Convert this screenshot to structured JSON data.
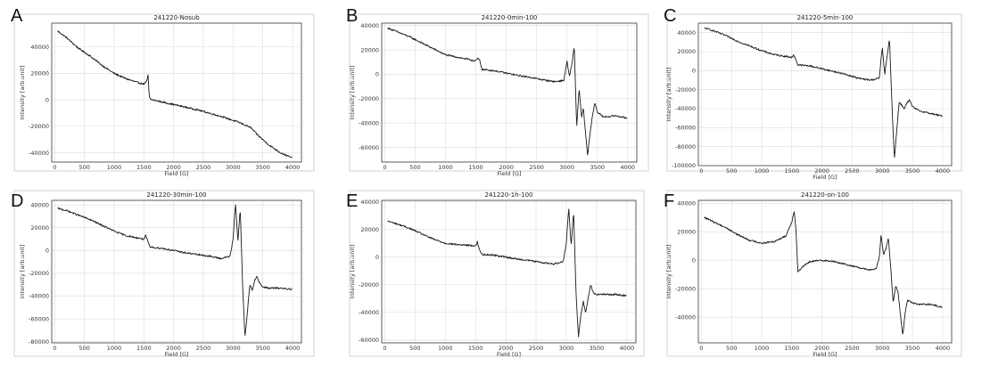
{
  "chart_data": [
    {
      "letter": "A",
      "type": "line",
      "title": "241220-Nosub",
      "xlabel": "Field [G]",
      "ylabel": "Intensity [arb.unit]",
      "xlim": [
        -50,
        4150
      ],
      "ylim": [
        -47000,
        58000
      ],
      "xticks": [
        0,
        500,
        1000,
        1500,
        2000,
        2500,
        3000,
        3500,
        4000
      ],
      "yticks": [
        -40000,
        -20000,
        0,
        20000,
        40000
      ],
      "grid": true,
      "series": [
        {
          "x": [
            50,
            200,
            400,
            600,
            800,
            1000,
            1200,
            1400,
            1500,
            1550,
            1570,
            1590,
            1620,
            1800,
            2000,
            2200,
            2400,
            2600,
            2800,
            3000,
            3100,
            3200,
            3300,
            3400,
            3600,
            3800,
            4000
          ],
          "y": [
            52000,
            47000,
            39000,
            33000,
            26000,
            20000,
            16000,
            13000,
            12000,
            14000,
            19000,
            2000,
            300,
            -1500,
            -3500,
            -5500,
            -7500,
            -10000,
            -12500,
            -15500,
            -17000,
            -19000,
            -21000,
            -26000,
            -34000,
            -40000,
            -44000
          ]
        }
      ]
    },
    {
      "letter": "B",
      "type": "line",
      "title": "241220-0min-100",
      "xlabel": "Field [G]",
      "ylabel": "Intensity [arb.unit]",
      "xlim": [
        -50,
        4150
      ],
      "ylim": [
        -72000,
        42000
      ],
      "xticks": [
        0,
        500,
        1000,
        1500,
        2000,
        2500,
        3000,
        3500,
        4000
      ],
      "yticks": [
        -60000,
        -40000,
        -20000,
        0,
        20000,
        40000
      ],
      "grid": true,
      "series": [
        {
          "x": [
            50,
            200,
            400,
            600,
            800,
            1000,
            1200,
            1400,
            1500,
            1530,
            1560,
            1600,
            1800,
            2000,
            2200,
            2400,
            2600,
            2800,
            2950,
            3000,
            3040,
            3080,
            3120,
            3160,
            3200,
            3240,
            3270,
            3300,
            3340,
            3380,
            3420,
            3460,
            3500,
            3600,
            3800,
            4000
          ],
          "y": [
            38000,
            35000,
            31000,
            26000,
            21000,
            16000,
            14000,
            12000,
            11000,
            13000,
            12000,
            4000,
            3000,
            1000,
            -1000,
            -2500,
            -4500,
            -6000,
            -5000,
            11000,
            -2000,
            8000,
            23000,
            -43000,
            -12000,
            -35000,
            -28000,
            -45000,
            -67000,
            -48000,
            -34000,
            -23000,
            -31000,
            -35000,
            -34000,
            -36000
          ]
        }
      ]
    },
    {
      "letter": "C",
      "type": "line",
      "title": "241220-5min-100",
      "xlabel": "Field [G]",
      "ylabel": "Intensity [arb.unit]",
      "xlim": [
        -50,
        4150
      ],
      "ylim": [
        -100000,
        50000
      ],
      "xticks": [
        0,
        500,
        1000,
        1500,
        2000,
        2500,
        3000,
        3500,
        4000
      ],
      "yticks": [
        -100000,
        -80000,
        -60000,
        -40000,
        -20000,
        0,
        20000,
        40000
      ],
      "grid": true,
      "series": [
        {
          "x": [
            50,
            200,
            400,
            600,
            800,
            1000,
            1200,
            1400,
            1500,
            1530,
            1560,
            1600,
            1800,
            2000,
            2200,
            2400,
            2600,
            2800,
            2950,
            3000,
            3040,
            3080,
            3120,
            3160,
            3200,
            3240,
            3280,
            3320,
            3360,
            3400,
            3450,
            3500,
            3600,
            3800,
            4000
          ],
          "y": [
            45000,
            42000,
            37000,
            31000,
            26000,
            21000,
            17000,
            15000,
            14000,
            16000,
            13000,
            6000,
            5000,
            2000,
            -1000,
            -4000,
            -8000,
            -10000,
            -8000,
            25000,
            -4000,
            15000,
            33000,
            -35000,
            -93000,
            -62000,
            -33000,
            -36000,
            -40000,
            -35000,
            -31000,
            -38000,
            -42000,
            -45000,
            -48000
          ]
        }
      ]
    },
    {
      "letter": "D",
      "type": "line",
      "title": "241220-30min-100",
      "xlabel": "Field [G]",
      "ylabel": "Intensity [arb.unit]",
      "xlim": [
        -50,
        4150
      ],
      "ylim": [
        -81000,
        44000
      ],
      "xticks": [
        0,
        500,
        1000,
        1500,
        2000,
        2500,
        3000,
        3500,
        4000
      ],
      "yticks": [
        -80000,
        -60000,
        -40000,
        -20000,
        0,
        20000,
        40000
      ],
      "grid": true,
      "series": [
        {
          "x": [
            50,
            200,
            400,
            600,
            800,
            1000,
            1200,
            1400,
            1500,
            1530,
            1560,
            1600,
            1800,
            2000,
            2200,
            2400,
            2600,
            2800,
            2950,
            3000,
            3040,
            3080,
            3120,
            3160,
            3200,
            3240,
            3280,
            3320,
            3360,
            3400,
            3450,
            3500,
            3600,
            3800,
            4000
          ],
          "y": [
            37000,
            35000,
            31000,
            27000,
            22000,
            17000,
            13000,
            11000,
            10000,
            13000,
            9000,
            3000,
            2000,
            0,
            -2000,
            -3500,
            -5000,
            -7000,
            -5000,
            10000,
            42000,
            8000,
            37000,
            -30000,
            -76000,
            -55000,
            -30000,
            -35000,
            -27000,
            -22000,
            -29000,
            -32000,
            -33000,
            -33000,
            -34000
          ]
        }
      ]
    },
    {
      "letter": "E",
      "type": "line",
      "title": "241220-1h-100",
      "xlabel": "Field [G]",
      "ylabel": "Intensity [arb.unit]",
      "xlim": [
        -50,
        4150
      ],
      "ylim": [
        -62000,
        41000
      ],
      "xticks": [
        0,
        500,
        1000,
        1500,
        2000,
        2500,
        3000,
        3500,
        4000
      ],
      "yticks": [
        -60000,
        -40000,
        -20000,
        0,
        20000,
        40000
      ],
      "grid": true,
      "series": [
        {
          "x": [
            50,
            200,
            400,
            600,
            800,
            1000,
            1200,
            1400,
            1500,
            1530,
            1560,
            1600,
            1800,
            2000,
            2200,
            2400,
            2600,
            2800,
            2950,
            3000,
            3040,
            3080,
            3120,
            3160,
            3200,
            3240,
            3280,
            3320,
            3360,
            3400,
            3450,
            3500,
            3600,
            3800,
            4000
          ],
          "y": [
            26000,
            24000,
            21000,
            17000,
            13000,
            10000,
            9000,
            8500,
            8000,
            11000,
            6000,
            2000,
            1500,
            0,
            -1500,
            -2500,
            -4000,
            -5000,
            -3000,
            10000,
            36000,
            8000,
            33000,
            -25000,
            -58000,
            -42000,
            -32000,
            -40000,
            -30000,
            -20000,
            -26000,
            -27000,
            -27000,
            -27000,
            -28000
          ]
        }
      ]
    },
    {
      "letter": "F",
      "type": "line",
      "title": "241220-on-100",
      "xlabel": "Field [G]",
      "ylabel": "Intensity [arb.unit]",
      "xlim": [
        -50,
        4150
      ],
      "ylim": [
        -58000,
        42000
      ],
      "xticks": [
        0,
        500,
        1000,
        1500,
        2000,
        2500,
        3000,
        3500,
        4000
      ],
      "yticks": [
        -40000,
        -20000,
        0,
        20000,
        40000
      ],
      "grid": true,
      "series": [
        {
          "x": [
            50,
            200,
            400,
            600,
            800,
            1000,
            1200,
            1400,
            1500,
            1540,
            1570,
            1600,
            1700,
            1800,
            2000,
            2200,
            2400,
            2600,
            2800,
            2900,
            2950,
            2980,
            3020,
            3060,
            3100,
            3140,
            3180,
            3220,
            3260,
            3300,
            3340,
            3380,
            3420,
            3500,
            3600,
            3800,
            4000
          ],
          "y": [
            30000,
            27000,
            23000,
            18000,
            14000,
            12000,
            13000,
            17000,
            27000,
            35000,
            20000,
            -8000,
            -4000,
            -1000,
            0,
            -1000,
            -3000,
            -5000,
            -7000,
            -6000,
            2000,
            18000,
            4000,
            8000,
            16000,
            -5000,
            -30000,
            -18000,
            -22000,
            -38000,
            -53000,
            -36000,
            -28000,
            -30000,
            -31000,
            -31000,
            -33000
          ]
        }
      ]
    }
  ]
}
